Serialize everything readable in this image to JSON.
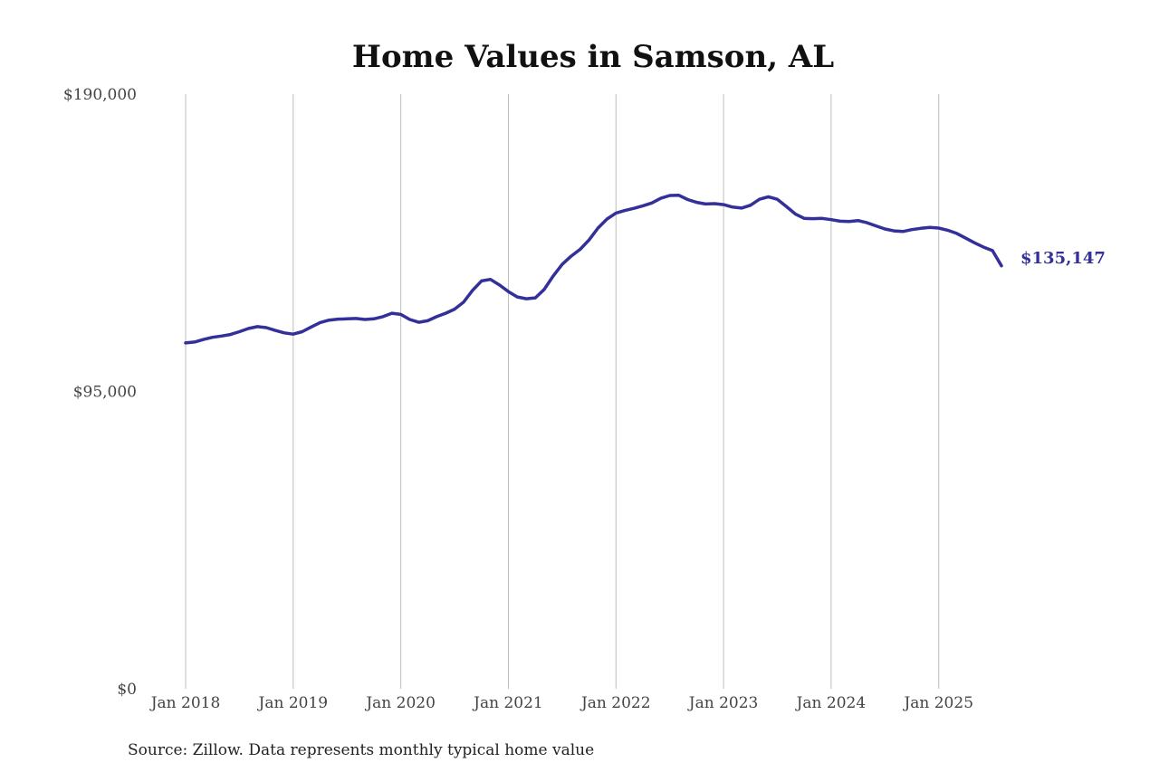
{
  "chart_data": {
    "type": "line",
    "title": "Home Values in Samson, AL",
    "source": "Source: Zillow. Data represents monthly typical home value",
    "xlabel": "",
    "ylabel": "",
    "ylim": [
      0,
      190000
    ],
    "yticks": [
      {
        "value": 0,
        "label": "$0"
      },
      {
        "value": 95000,
        "label": "$95,000"
      },
      {
        "value": 190000,
        "label": "$190,000"
      }
    ],
    "xticks": [
      {
        "x": 2018.0,
        "label": "Jan 2018"
      },
      {
        "x": 2019.0,
        "label": "Jan 2019"
      },
      {
        "x": 2020.0,
        "label": "Jan 2020"
      },
      {
        "x": 2021.0,
        "label": "Jan 2021"
      },
      {
        "x": 2022.0,
        "label": "Jan 2022"
      },
      {
        "x": 2023.0,
        "label": "Jan 2023"
      },
      {
        "x": 2024.0,
        "label": "Jan 2024"
      },
      {
        "x": 2025.0,
        "label": "Jan 2025"
      }
    ],
    "xlim": [
      2018.0,
      2025.583
    ],
    "grid": "vertical",
    "line_color": "#33309a",
    "end_label": "$135,147",
    "series": [
      {
        "x": [
          2018.0,
          2018.083,
          2018.167,
          2018.25,
          2018.333,
          2018.417,
          2018.5,
          2018.583,
          2018.667,
          2018.75,
          2018.833,
          2018.917,
          2019.0,
          2019.083,
          2019.167,
          2019.25,
          2019.333,
          2019.417,
          2019.5,
          2019.583,
          2019.667,
          2019.75,
          2019.833,
          2019.917,
          2020.0,
          2020.083,
          2020.167,
          2020.25,
          2020.333,
          2020.417,
          2020.5,
          2020.583,
          2020.667,
          2020.75,
          2020.833,
          2020.917,
          2021.0,
          2021.083,
          2021.167,
          2021.25,
          2021.333,
          2021.417,
          2021.5,
          2021.583,
          2021.667,
          2021.75,
          2021.833,
          2021.917,
          2022.0,
          2022.083,
          2022.167,
          2022.25,
          2022.333,
          2022.417,
          2022.5,
          2022.583,
          2022.667,
          2022.75,
          2022.833,
          2022.917,
          2023.0,
          2023.083,
          2023.167,
          2023.25,
          2023.333,
          2023.417,
          2023.5,
          2023.583,
          2023.667,
          2023.75,
          2023.833,
          2023.917,
          2024.0,
          2024.083,
          2024.167,
          2024.25,
          2024.333,
          2024.417,
          2024.5,
          2024.583,
          2024.667,
          2024.75,
          2024.833,
          2024.917,
          2025.0,
          2025.083,
          2025.167,
          2025.25,
          2025.333,
          2025.417,
          2025.5,
          2025.583
        ],
        "values": [
          110500,
          110800,
          111600,
          112300,
          112700,
          113200,
          114100,
          115100,
          115700,
          115400,
          114500,
          113700,
          113300,
          114100,
          115600,
          117000,
          117800,
          118100,
          118200,
          118300,
          118000,
          118200,
          118900,
          120000,
          119600,
          118000,
          117100,
          117600,
          118900,
          120000,
          121300,
          123500,
          127300,
          130300,
          130800,
          129000,
          126900,
          125200,
          124600,
          124900,
          127600,
          131900,
          135600,
          138200,
          140400,
          143400,
          147200,
          150100,
          152000,
          152800,
          153500,
          154300,
          155200,
          156700,
          157600,
          157700,
          156300,
          155400,
          154900,
          155000,
          154700,
          153900,
          153600,
          154500,
          156400,
          157200,
          156400,
          154100,
          151700,
          150300,
          150200,
          150300,
          149900,
          149400,
          149300,
          149600,
          148900,
          147900,
          146900,
          146300,
          146100,
          146700,
          147100,
          147400,
          147200,
          146500,
          145500,
          144000,
          142500,
          141100,
          140000,
          135147
        ]
      }
    ]
  }
}
